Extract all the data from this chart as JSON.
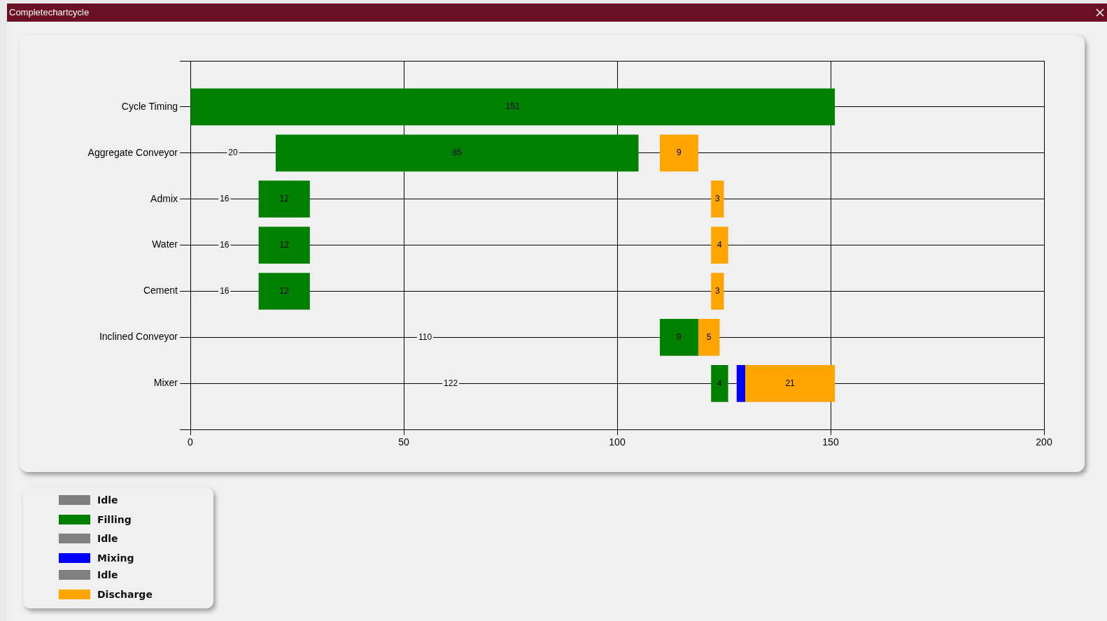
{
  "chart_data": {
    "type": "bar",
    "orientation": "horizontal",
    "title": "Completechartcycle",
    "categories": [
      "Cycle Timing",
      "Aggregate Conveyor",
      "Admix",
      "Water",
      "Cement",
      "Inclined Conveyor",
      "Mixer"
    ],
    "series": [
      {
        "name": "Idle",
        "color": "#808080",
        "values": [
          null,
          null,
          null,
          null,
          null,
          null,
          null
        ]
      },
      {
        "name": "Filling",
        "color": "#008000",
        "base": [
          0,
          20,
          16,
          16,
          16,
          110,
          122
        ],
        "values": [
          151,
          85,
          12,
          12,
          12,
          9,
          4
        ],
        "value_labels": [
          "151",
          "85",
          "12",
          "12",
          "12",
          "9",
          "4"
        ]
      },
      {
        "name": "Idle",
        "color": "#808080",
        "values": [
          null,
          null,
          null,
          null,
          null,
          null,
          null
        ]
      },
      {
        "name": "Mixing",
        "color": "#0000ff",
        "base": [
          null,
          null,
          null,
          null,
          null,
          null,
          128
        ],
        "values": [
          null,
          null,
          null,
          null,
          null,
          null,
          2
        ]
      },
      {
        "name": "Idle",
        "color": "#808080",
        "values": [
          null,
          null,
          null,
          null,
          null,
          null,
          null
        ]
      },
      {
        "name": "Discharge",
        "color": "#ffa500",
        "base": [
          null,
          110,
          122,
          122,
          122,
          119,
          130
        ],
        "values": [
          null,
          9,
          3,
          4,
          3,
          5,
          21
        ],
        "value_labels": [
          null,
          "9",
          "3",
          "4",
          "3",
          "5",
          "21"
        ]
      }
    ],
    "annotations": [
      {
        "text": "20",
        "x": 10,
        "y": "Aggregate Conveyor"
      },
      {
        "text": "16",
        "x": 8,
        "y": "Admix"
      },
      {
        "text": "16",
        "x": 8,
        "y": "Water"
      },
      {
        "text": "16",
        "x": 8,
        "y": "Cement"
      },
      {
        "text": "110",
        "x": 55,
        "y": "Inclined Conveyor"
      },
      {
        "text": "122",
        "x": 61,
        "y": "Mixer"
      }
    ],
    "xlim": [
      0,
      200
    ],
    "xticks": [
      0,
      50,
      100,
      150,
      200
    ],
    "grid": true,
    "legend": "bottom left"
  }
}
